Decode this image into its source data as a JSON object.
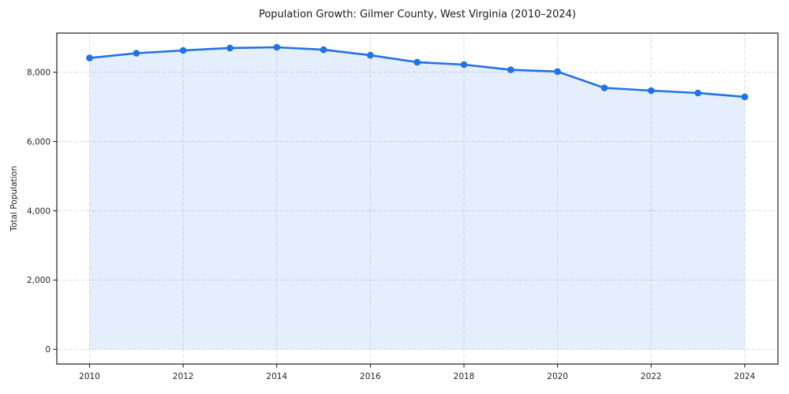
{
  "chart_data": {
    "type": "line",
    "title": "Population Growth: Gilmer County, West Virginia (2010–2024)",
    "xlabel": "",
    "ylabel": "Total Population",
    "x": [
      2010,
      2011,
      2012,
      2013,
      2014,
      2015,
      2016,
      2017,
      2018,
      2019,
      2020,
      2021,
      2022,
      2023,
      2024
    ],
    "series": [
      {
        "name": "Total Population",
        "values": [
          8410,
          8550,
          8630,
          8700,
          8720,
          8650,
          8490,
          8290,
          8220,
          8070,
          8020,
          7550,
          7470,
          7400,
          7290
        ]
      }
    ],
    "x_ticks": [
      2010,
      2012,
      2014,
      2016,
      2018,
      2020,
      2022,
      2024
    ],
    "x_tick_labels": [
      "2010",
      "2012",
      "2014",
      "2016",
      "2018",
      "2020",
      "2022",
      "2024"
    ],
    "y_ticks": [
      0,
      2000,
      4000,
      6000,
      8000
    ],
    "y_tick_labels": [
      "0",
      "2,000",
      "4,000",
      "6,000",
      "8,000"
    ],
    "xlim": [
      2009.3,
      2024.71
    ],
    "ylim": [
      -425,
      9130
    ],
    "grid": true,
    "grid_style": "dashed",
    "legend_position": "none",
    "area_fill": true,
    "colors": {
      "line": "#2171e8",
      "marker": "#2171e8",
      "fill": "#2171e8",
      "grid": "#dcdcdc",
      "spine": "#1f1f1f",
      "text": "#1a1a1a"
    },
    "fill_opacity": 0.12
  }
}
